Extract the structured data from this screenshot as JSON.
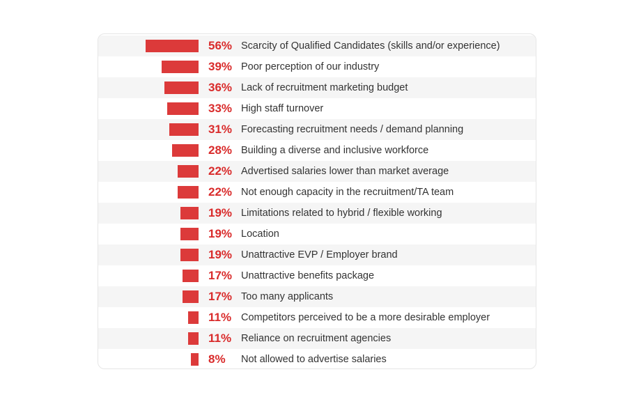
{
  "chart_data": {
    "type": "bar",
    "orientation": "horizontal",
    "bar_color": "#dc3a3a",
    "value_color": "#d92b2b",
    "value_suffix": "%",
    "categories": [
      "Scarcity of Qualified Candidates (skills and/or experience)",
      "Poor perception of our industry",
      "Lack of recruitment marketing budget",
      "High staff turnover",
      "Forecasting recruitment needs / demand planning",
      "Building a diverse and inclusive workforce",
      "Advertised salaries lower than market average",
      "Not enough capacity in the recruitment/TA team",
      "Limitations related to hybrid / flexible working",
      "Location",
      "Unattractive EVP / Employer brand",
      "Unattractive benefits package",
      "Too many applicants",
      "Competitors perceived to be a more desirable employer",
      "Reliance on recruitment agencies",
      "Not allowed to advertise salaries"
    ],
    "values": [
      56,
      39,
      36,
      33,
      31,
      28,
      22,
      22,
      19,
      19,
      19,
      17,
      17,
      11,
      11,
      8
    ],
    "value_labels": [
      "56%",
      "39%",
      "36%",
      "33%",
      "31%",
      "28%",
      "22%",
      "22%",
      "19%",
      "19%",
      "19%",
      "17%",
      "17%",
      "11%",
      "11%",
      "8%"
    ]
  }
}
